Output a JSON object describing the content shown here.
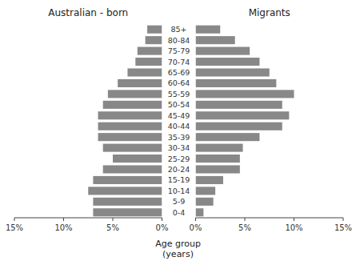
{
  "chart_data": [
    {
      "type": "bar",
      "orientation": "horizontal",
      "title": "Australian - born",
      "xlabel": "Age group\n(years)",
      "categories": [
        "0-4",
        "5-9",
        "10-14",
        "15-19",
        "20-24",
        "25-29",
        "30-34",
        "35-39",
        "40-44",
        "45-49",
        "50-54",
        "55-59",
        "60-64",
        "65-69",
        "70-74",
        "75-79",
        "80-84",
        "85+"
      ],
      "values": [
        7.0,
        7.0,
        7.5,
        7.0,
        6.0,
        5.0,
        6.0,
        6.5,
        6.5,
        6.5,
        6.0,
        5.5,
        4.5,
        3.5,
        2.7,
        2.5,
        1.7,
        1.5
      ],
      "color": "#888888",
      "xlim": [
        15,
        0
      ],
      "xticks": [
        {
          "value": 15,
          "label": "15%"
        },
        {
          "value": 10,
          "label": "10%"
        },
        {
          "value": 5,
          "label": "5%"
        },
        {
          "value": 0,
          "label": "0%"
        }
      ],
      "tick_labels": "x"
    },
    {
      "type": "bar",
      "orientation": "horizontal",
      "title": "Migrants",
      "categories": [
        "0-4",
        "5-9",
        "10-14",
        "15-19",
        "20-24",
        "25-29",
        "30-34",
        "35-39",
        "40-44",
        "45-49",
        "50-54",
        "55-59",
        "60-64",
        "65-69",
        "70-74",
        "75-79",
        "80-84",
        "85+"
      ],
      "values": [
        0.8,
        1.8,
        2.0,
        2.8,
        4.5,
        4.5,
        4.8,
        6.5,
        8.8,
        9.5,
        8.8,
        10.0,
        8.2,
        7.5,
        6.5,
        5.5,
        4.0,
        2.5
      ],
      "color": "#888888",
      "xlim": [
        0,
        15
      ],
      "xticks": [
        {
          "value": 0,
          "label": "0%"
        },
        {
          "value": 5,
          "label": "5%"
        },
        {
          "value": 10,
          "label": "10%"
        },
        {
          "value": 15,
          "label": "15%"
        }
      ]
    }
  ]
}
